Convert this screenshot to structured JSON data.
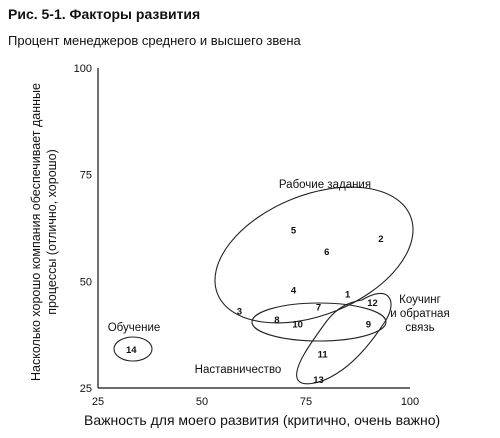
{
  "figure": {
    "title": "Рис. 5-1. Факторы развития",
    "subtitle": "Процент менеджеров среднего и высшего звена"
  },
  "chart_data": {
    "type": "scatter",
    "title": "Рис. 5-1. Факторы развития",
    "subtitle": "Процент менеджеров среднего и высшего звена",
    "xlabel": "Важность для моего развития (критично, очень важно)",
    "ylabel": "Насколько хорошо компания обеспечивает данные процессы (отлично, хорошо)",
    "xlim": [
      25,
      100
    ],
    "ylim": [
      25,
      100
    ],
    "x_ticks": [
      "25",
      "50",
      "75",
      "100"
    ],
    "y_ticks": [
      "25",
      "50",
      "75",
      "100"
    ],
    "grid": false,
    "points": [
      {
        "label": "1",
        "x": 85,
        "y": 47
      },
      {
        "label": "2",
        "x": 93,
        "y": 60
      },
      {
        "label": "3",
        "x": 59,
        "y": 43
      },
      {
        "label": "4",
        "x": 72,
        "y": 48
      },
      {
        "label": "5",
        "x": 72,
        "y": 62
      },
      {
        "label": "6",
        "x": 80,
        "y": 57
      },
      {
        "label": "7",
        "x": 78,
        "y": 44
      },
      {
        "label": "8",
        "x": 68,
        "y": 41
      },
      {
        "label": "9",
        "x": 90,
        "y": 40
      },
      {
        "label": "10",
        "x": 73,
        "y": 40
      },
      {
        "label": "11",
        "x": 79,
        "y": 33
      },
      {
        "label": "12",
        "x": 91,
        "y": 45
      },
      {
        "label": "13",
        "x": 78,
        "y": 27
      },
      {
        "label": "14",
        "x": 33,
        "y": 34
      }
    ],
    "groups": [
      {
        "name": "Рабочие задания",
        "label_lines": [
          "Рабочие задания"
        ]
      },
      {
        "name": "Коучинг и обратная связь",
        "label_lines": [
          "Коучинг",
          "и обратная",
          "связь"
        ]
      },
      {
        "name": "Наставничество",
        "label_lines": [
          "Наставничество"
        ]
      },
      {
        "name": "Обучение",
        "label_lines": [
          "Обучение"
        ]
      }
    ]
  }
}
